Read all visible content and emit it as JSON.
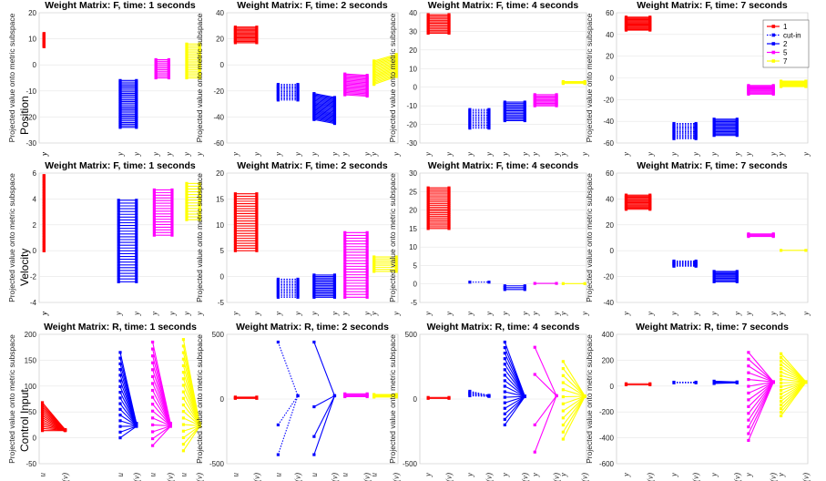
{
  "row_labels": [
    "Position",
    "Velocity",
    "Control Input"
  ],
  "y_label": "Projected value onto metric subspace",
  "legend": {
    "entries": [
      {
        "label": "1",
        "color": "#ff0000",
        "style": "solid"
      },
      {
        "label": "cut-in",
        "color": "#0000ff",
        "style": "dotted"
      },
      {
        "label": "2",
        "color": "#0000ff",
        "style": "solid"
      },
      {
        "label": "5",
        "color": "#ff00ff",
        "style": "solid"
      },
      {
        "label": "7",
        "color": "#ffff00",
        "style": "solid"
      }
    ]
  },
  "chart_data": [
    {
      "type": "line",
      "title": "Weight Matrix: F, time: 1 seconds",
      "ylim": [
        -30,
        20
      ],
      "yticks": [
        -30,
        -20,
        -10,
        0,
        10,
        20
      ],
      "xtick_labels": [
        "y_i^p",
        "y_i^a"
      ],
      "groups": [
        {
          "agent": "1",
          "p": [
            7,
            12
          ],
          "a": [
            7,
            12
          ],
          "n": 14,
          "pattern": "band"
        },
        {
          "agent": "2",
          "p": [
            -24,
            -6
          ],
          "a": [
            -24,
            -6
          ],
          "n": 30,
          "pattern": "band"
        },
        {
          "agent": "5",
          "p": [
            -5,
            2
          ],
          "a": [
            -5,
            2
          ],
          "n": 12,
          "pattern": "band"
        },
        {
          "agent": "7",
          "p": [
            -5,
            8
          ],
          "a": [
            -5,
            8
          ],
          "n": 18,
          "pattern": "band"
        }
      ]
    },
    {
      "type": "line",
      "title": "Weight Matrix: F, time: 2 seconds",
      "ylim": [
        -60,
        40
      ],
      "yticks": [
        -60,
        -40,
        -20,
        0,
        20,
        40
      ],
      "xtick_labels": [
        "y_i^p",
        "y_i^a"
      ],
      "groups": [
        {
          "agent": "1",
          "p": [
            17,
            29
          ],
          "a": [
            17,
            29
          ],
          "n": 14,
          "pattern": "band"
        },
        {
          "agent": "cut-in",
          "p": [
            -27,
            -15
          ],
          "a": [
            -27,
            -15
          ],
          "n": 14,
          "pattern": "band"
        },
        {
          "agent": "2",
          "p": [
            -42,
            -22
          ],
          "a": [
            -45,
            -25
          ],
          "n": 24,
          "pattern": "band"
        },
        {
          "agent": "5",
          "p": [
            -23,
            -7
          ],
          "a": [
            -24,
            -8
          ],
          "n": 18,
          "pattern": "band"
        },
        {
          "agent": "7",
          "p": [
            -15,
            3
          ],
          "a": [
            -9,
            8
          ],
          "n": 18,
          "pattern": "band"
        }
      ]
    },
    {
      "type": "line",
      "title": "Weight Matrix: F, time: 4 seconds",
      "ylim": [
        -30,
        40
      ],
      "yticks": [
        -30,
        -20,
        -10,
        0,
        10,
        20,
        30,
        40
      ],
      "xtick_labels": [
        "y_i^p",
        "y_i^a"
      ],
      "groups": [
        {
          "agent": "1",
          "p": [
            29,
            39
          ],
          "a": [
            29,
            39
          ],
          "n": 14,
          "pattern": "band"
        },
        {
          "agent": "cut-in",
          "p": [
            -22,
            -12
          ],
          "a": [
            -22,
            -12
          ],
          "n": 14,
          "pattern": "band"
        },
        {
          "agent": "2",
          "p": [
            -18,
            -8
          ],
          "a": [
            -18,
            -8
          ],
          "n": 14,
          "pattern": "band"
        },
        {
          "agent": "5",
          "p": [
            -10,
            -4
          ],
          "a": [
            -10,
            -4
          ],
          "n": 10,
          "pattern": "band"
        },
        {
          "agent": "7",
          "p": [
            2,
            3
          ],
          "a": [
            2,
            3
          ],
          "n": 3,
          "pattern": "band"
        }
      ]
    },
    {
      "type": "line",
      "title": "Weight Matrix: F, time: 7 seconds",
      "ylim": [
        -60,
        60
      ],
      "yticks": [
        -60,
        -40,
        -20,
        0,
        20,
        40,
        60
      ],
      "xtick_labels": [
        "y_i^p",
        "y_i^a"
      ],
      "groups": [
        {
          "agent": "1",
          "p": [
            44,
            56
          ],
          "a": [
            44,
            56
          ],
          "n": 14,
          "pattern": "band"
        },
        {
          "agent": "cut-in",
          "p": [
            -56,
            -42
          ],
          "a": [
            -56,
            -42
          ],
          "n": 14,
          "pattern": "band"
        },
        {
          "agent": "2",
          "p": [
            -53,
            -38
          ],
          "a": [
            -53,
            -38
          ],
          "n": 14,
          "pattern": "band"
        },
        {
          "agent": "5",
          "p": [
            -15,
            -7
          ],
          "a": [
            -15,
            -7
          ],
          "n": 10,
          "pattern": "band"
        },
        {
          "agent": "7",
          "p": [
            -8,
            -3
          ],
          "a": [
            -8,
            -3
          ],
          "n": 8,
          "pattern": "band"
        }
      ]
    },
    {
      "type": "line",
      "title": "Weight Matrix: F, time: 1 seconds",
      "ylim": [
        -4,
        6
      ],
      "yticks": [
        -4,
        -2,
        0,
        2,
        4,
        6
      ],
      "xtick_labels": [
        "y_i^p",
        "y_i^a"
      ],
      "groups": [
        {
          "agent": "1",
          "p": [
            0,
            5.8
          ],
          "a": [
            0,
            5.8
          ],
          "n": 30,
          "pattern": "band"
        },
        {
          "agent": "2",
          "p": [
            -2.4,
            3.9
          ],
          "a": [
            -2.4,
            3.9
          ],
          "n": 30,
          "pattern": "band"
        },
        {
          "agent": "5",
          "p": [
            1.2,
            4.7
          ],
          "a": [
            1.2,
            4.7
          ],
          "n": 18,
          "pattern": "band"
        },
        {
          "agent": "7",
          "p": [
            2.4,
            5.2
          ],
          "a": [
            2.4,
            5.2
          ],
          "n": 14,
          "pattern": "band"
        }
      ]
    },
    {
      "type": "line",
      "title": "Weight Matrix: F, time: 2 seconds",
      "ylim": [
        -5,
        20
      ],
      "yticks": [
        -5,
        0,
        5,
        10,
        15,
        20
      ],
      "xtick_labels": [
        "y_i^p",
        "y_i^a"
      ],
      "groups": [
        {
          "agent": "1",
          "p": [
            5,
            16
          ],
          "a": [
            5,
            16
          ],
          "n": 24,
          "pattern": "band"
        },
        {
          "agent": "cut-in",
          "p": [
            -4,
            -0.5
          ],
          "a": [
            -4,
            -0.5
          ],
          "n": 14,
          "pattern": "band"
        },
        {
          "agent": "2",
          "p": [
            -4,
            0.3
          ],
          "a": [
            -4,
            0.3
          ],
          "n": 16,
          "pattern": "band"
        },
        {
          "agent": "5",
          "p": [
            -4,
            8.5
          ],
          "a": [
            -4,
            8.5
          ],
          "n": 24,
          "pattern": "band"
        },
        {
          "agent": "7",
          "p": [
            1,
            3.8
          ],
          "a": [
            1,
            3.8
          ],
          "n": 8,
          "pattern": "band"
        }
      ]
    },
    {
      "type": "line",
      "title": "Weight Matrix: F, time: 4 seconds",
      "ylim": [
        -5,
        30
      ],
      "yticks": [
        -5,
        0,
        5,
        10,
        15,
        20,
        25,
        30
      ],
      "xtick_labels": [
        "y_i^p",
        "y_i^a"
      ],
      "groups": [
        {
          "agent": "1",
          "p": [
            15,
            26
          ],
          "a": [
            15,
            26
          ],
          "n": 24,
          "pattern": "band"
        },
        {
          "agent": "cut-in",
          "p": [
            0.4,
            0.6
          ],
          "a": [
            0.4,
            0.6
          ],
          "n": 1,
          "pattern": "band"
        },
        {
          "agent": "2",
          "p": [
            -1.5,
            -0.5
          ],
          "a": [
            -1.5,
            -0.5
          ],
          "n": 3,
          "pattern": "band"
        },
        {
          "agent": "5",
          "p": [
            0,
            0.3
          ],
          "a": [
            0,
            0.3
          ],
          "n": 1,
          "pattern": "band"
        },
        {
          "agent": "7",
          "p": [
            0,
            0.2
          ],
          "a": [
            0,
            0.2
          ],
          "n": 1,
          "pattern": "band"
        }
      ]
    },
    {
      "type": "line",
      "title": "Weight Matrix: F, time: 7 seconds",
      "ylim": [
        -40,
        60
      ],
      "yticks": [
        -40,
        -20,
        0,
        20,
        40,
        60
      ],
      "xtick_labels": [
        "y_i^p",
        "y_i^a"
      ],
      "groups": [
        {
          "agent": "1",
          "p": [
            32,
            43
          ],
          "a": [
            32,
            43
          ],
          "n": 14,
          "pattern": "band"
        },
        {
          "agent": "cut-in",
          "p": [
            -12,
            -8
          ],
          "a": [
            -12,
            -8
          ],
          "n": 8,
          "pattern": "band"
        },
        {
          "agent": "2",
          "p": [
            -24,
            -16
          ],
          "a": [
            -24,
            -16
          ],
          "n": 10,
          "pattern": "band"
        },
        {
          "agent": "5",
          "p": [
            11,
            13
          ],
          "a": [
            11,
            13
          ],
          "n": 4,
          "pattern": "band"
        },
        {
          "agent": "7",
          "p": [
            0,
            0.5
          ],
          "a": [
            0,
            0.5
          ],
          "n": 1,
          "pattern": "band"
        }
      ]
    },
    {
      "type": "line",
      "title": "Weight Matrix: R, time: 1 seconds",
      "ylim": [
        -50,
        200
      ],
      "yticks": [
        -50,
        0,
        50,
        100,
        150,
        200
      ],
      "xtick_labels": [
        "u_i^p",
        "h_i(v_i^a)"
      ],
      "groups": [
        {
          "agent": "1",
          "p": [
            14,
            68
          ],
          "a": [
            14,
            16
          ],
          "n": 14,
          "pattern": "fan"
        },
        {
          "agent": "2",
          "p": [
            0,
            165
          ],
          "a": [
            22,
            28
          ],
          "n": 16,
          "pattern": "fan"
        },
        {
          "agent": "5",
          "p": [
            -15,
            185
          ],
          "a": [
            22,
            28
          ],
          "n": 16,
          "pattern": "fan"
        },
        {
          "agent": "7",
          "p": [
            -25,
            190
          ],
          "a": [
            22,
            28
          ],
          "n": 18,
          "pattern": "fan"
        }
      ]
    },
    {
      "type": "line",
      "title": "Weight Matrix: R, time: 2 seconds",
      "ylim": [
        -500,
        500
      ],
      "yticks": [
        -500,
        0,
        500
      ],
      "xtick_labels": [
        "u_i^p",
        "h_i(v_i^a)"
      ],
      "groups": [
        {
          "agent": "1",
          "p": [
            5,
            15
          ],
          "a": [
            5,
            15
          ],
          "n": 3,
          "pattern": "band"
        },
        {
          "agent": "cut-in",
          "list": [
            [
              440,
              25
            ],
            [
              -200,
              25
            ],
            [
              -430,
              25
            ]
          ],
          "pattern": "list"
        },
        {
          "agent": "2",
          "list": [
            [
              440,
              25
            ],
            [
              -60,
              25
            ],
            [
              -290,
              25
            ],
            [
              -430,
              25
            ]
          ],
          "pattern": "list"
        },
        {
          "agent": "5",
          "p": [
            18,
            40
          ],
          "a": [
            18,
            40
          ],
          "n": 4,
          "pattern": "band"
        },
        {
          "agent": "7",
          "p": [
            15,
            35
          ],
          "a": [
            15,
            35
          ],
          "n": 4,
          "pattern": "band"
        }
      ]
    },
    {
      "type": "line",
      "title": "Weight Matrix: R, time: 4 seconds",
      "ylim": [
        -500,
        500
      ],
      "yticks": [
        -500,
        0,
        500
      ],
      "xtick_labels": [
        "y_i^p",
        "h_i(v_i^a)"
      ],
      "groups": [
        {
          "agent": "1",
          "p": [
            5,
            12
          ],
          "a": [
            5,
            12
          ],
          "n": 2,
          "pattern": "band"
        },
        {
          "agent": "cut-in",
          "p": [
            25,
            60
          ],
          "a": [
            20,
            28
          ],
          "n": 6,
          "pattern": "fan"
        },
        {
          "agent": "2",
          "p": [
            -200,
            440
          ],
          "a": [
            18,
            22
          ],
          "n": 16,
          "pattern": "fan"
        },
        {
          "agent": "5",
          "list": [
            [
              400,
              25
            ],
            [
              190,
              25
            ],
            [
              -200,
              25
            ],
            [
              -410,
              25
            ]
          ],
          "pattern": "list"
        },
        {
          "agent": "7",
          "p": [
            -310,
            290
          ],
          "a": [
            18,
            24
          ],
          "n": 12,
          "pattern": "fan"
        }
      ]
    },
    {
      "type": "line",
      "title": "Weight Matrix: R, time: 7 seconds",
      "ylim": [
        -600,
        400
      ],
      "yticks": [
        -600,
        -400,
        -200,
        0,
        200,
        400
      ],
      "xtick_labels": [
        "y_i^p",
        "h_i(v_i^a)"
      ],
      "groups": [
        {
          "agent": "1",
          "p": [
            10,
            18
          ],
          "a": [
            10,
            18
          ],
          "n": 2,
          "pattern": "band"
        },
        {
          "agent": "cut-in",
          "p": [
            25,
            30
          ],
          "a": [
            25,
            30
          ],
          "n": 2,
          "pattern": "band"
        },
        {
          "agent": "2",
          "p": [
            20,
            38
          ],
          "a": [
            25,
            32
          ],
          "n": 4,
          "pattern": "fan"
        },
        {
          "agent": "5",
          "p": [
            -420,
            260
          ],
          "a": [
            28,
            34
          ],
          "n": 14,
          "pattern": "fan"
        },
        {
          "agent": "7",
          "p": [
            -230,
            250
          ],
          "a": [
            28,
            34
          ],
          "n": 18,
          "pattern": "fan"
        }
      ]
    }
  ]
}
